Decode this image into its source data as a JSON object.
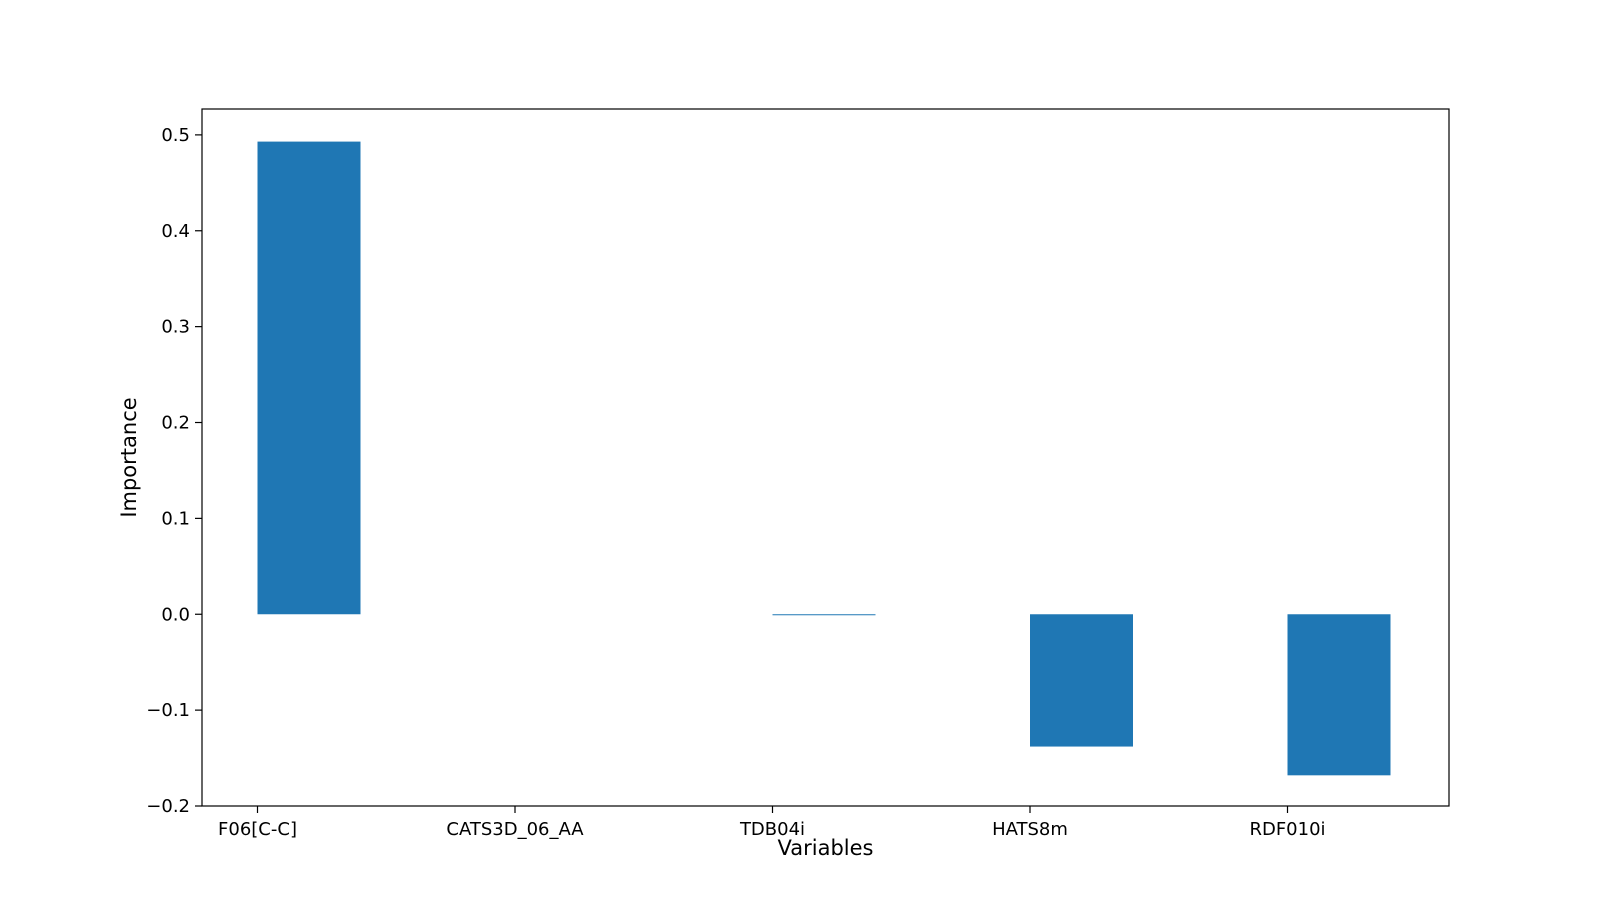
{
  "chart_data": {
    "type": "bar",
    "categories": [
      "F06[C-C]",
      "CATS3D_06_AA",
      "TDB04i",
      "HATS8m",
      "RDF010i"
    ],
    "values": [
      0.493,
      0.0,
      -0.001,
      -0.138,
      -0.168
    ],
    "xlabel": "Variables",
    "ylabel": "Importance",
    "ylim": [
      -0.2,
      0.527
    ],
    "yticks": [
      -0.2,
      -0.1,
      0.0,
      0.1,
      0.2,
      0.3,
      0.4,
      0.5
    ],
    "ytick_labels": [
      "−0.2",
      "−0.1",
      "0.0",
      "0.1",
      "0.2",
      "0.3",
      "0.4",
      "0.5"
    ],
    "bar_color": "#1f77b4",
    "grid": false,
    "legend": "none"
  }
}
